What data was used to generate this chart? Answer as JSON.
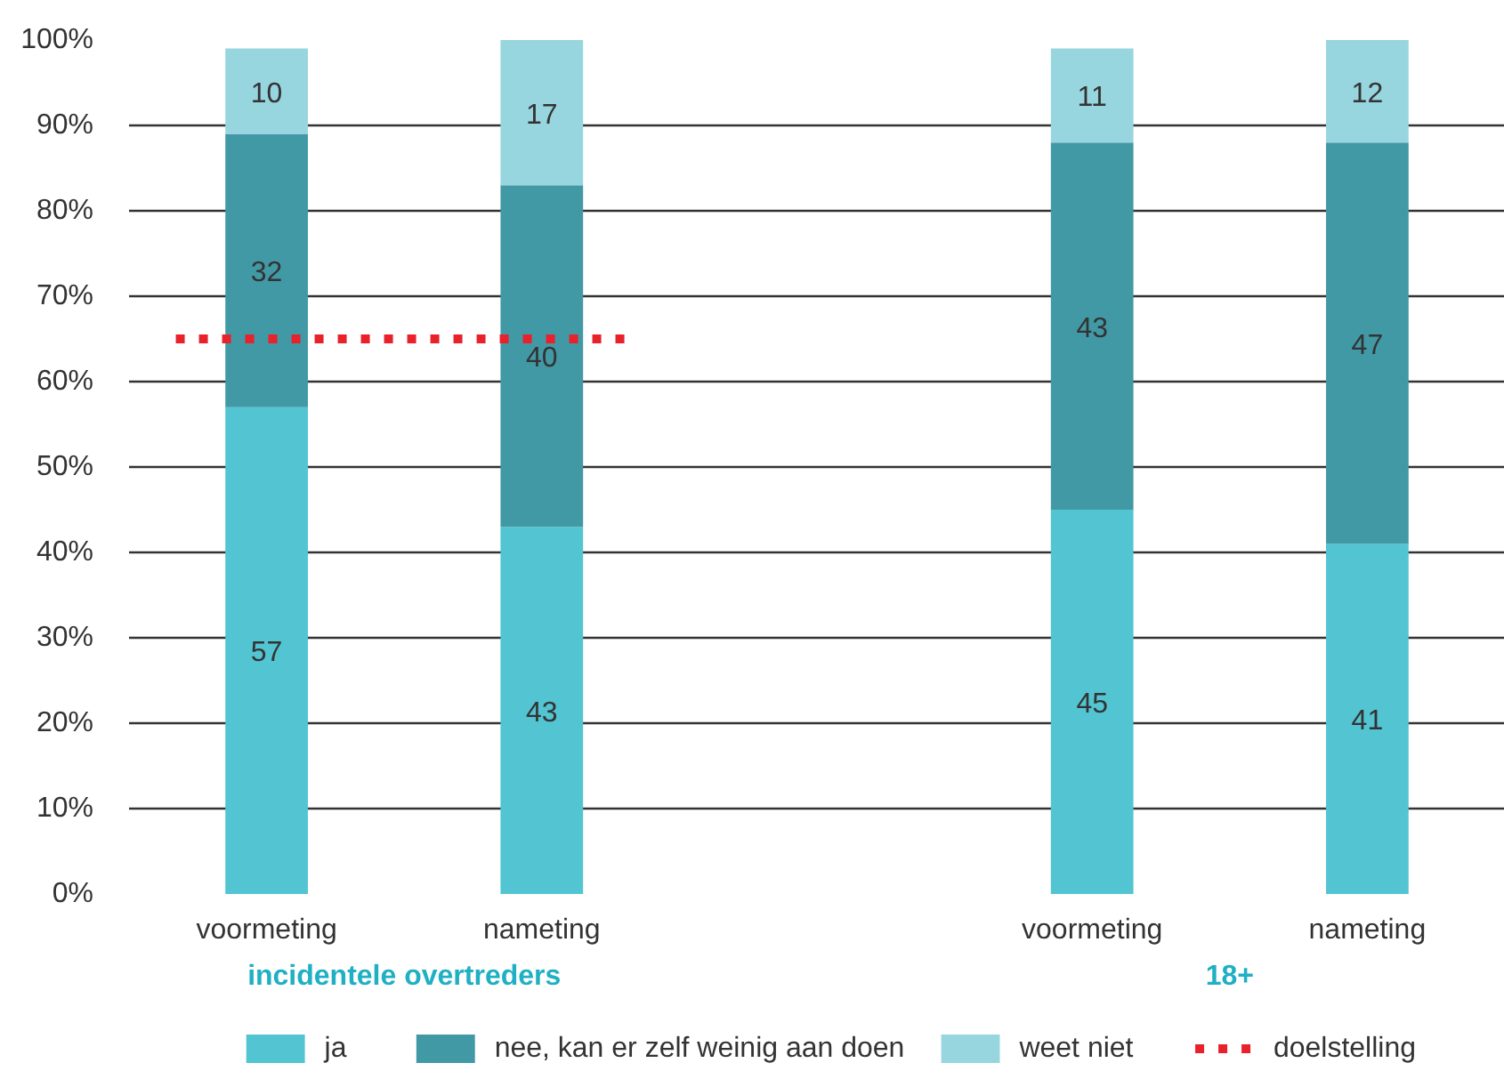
{
  "chart_data": {
    "type": "bar",
    "stacked": true,
    "categories": [
      "voormeting",
      "nameting",
      null,
      "voormeting",
      "nameting"
    ],
    "series": [
      {
        "name": "ja",
        "color": "#52c4d2",
        "values": [
          57,
          43,
          null,
          45,
          41
        ]
      },
      {
        "name": "nee, kan er zelf weinig aan doen",
        "color": "#4199a6",
        "values": [
          32,
          40,
          null,
          43,
          47
        ]
      },
      {
        "name": "weet niet",
        "color": "#97d6df",
        "values": [
          10,
          17,
          null,
          11,
          12
        ]
      }
    ],
    "ylim": [
      0,
      100
    ],
    "yticks": [
      {
        "value": 0,
        "label": "0%"
      },
      {
        "value": 10,
        "label": "10%"
      },
      {
        "value": 20,
        "label": "20%"
      },
      {
        "value": 30,
        "label": "30%"
      },
      {
        "value": 40,
        "label": "40%"
      },
      {
        "value": 50,
        "label": "50%"
      },
      {
        "value": 60,
        "label": "60%"
      },
      {
        "value": 70,
        "label": "70%"
      },
      {
        "value": 80,
        "label": "80%"
      },
      {
        "value": 90,
        "label": "90%"
      },
      {
        "value": 100,
        "label": "100%"
      }
    ],
    "grid": "y",
    "legend": "bottom",
    "data_labels": true,
    "ref_lines": [
      {
        "axis": "y",
        "value": 65,
        "label": "doelstelling",
        "color": "#e8212b",
        "line_style": "dotted"
      }
    ],
    "annotations": [
      "incidentele overtreders",
      "18+"
    ]
  }
}
